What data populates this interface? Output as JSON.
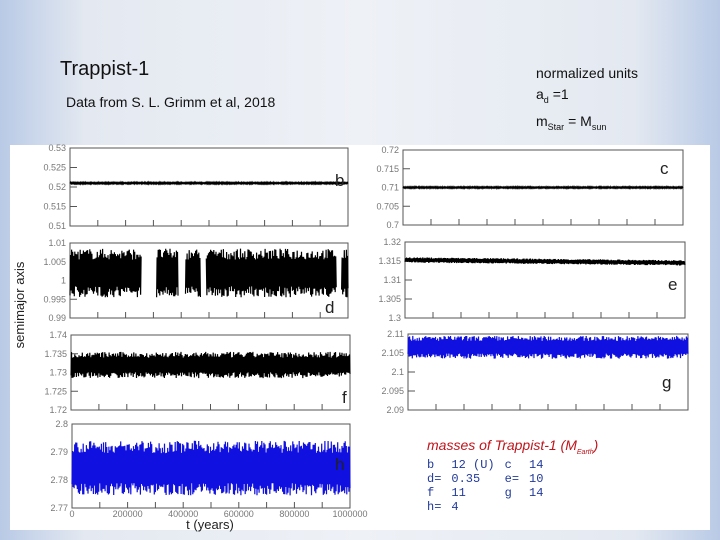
{
  "header": {
    "title": "Trappist-1",
    "source": "Data from S. L. Grimm et al, 2018",
    "units_line1": "normalized units",
    "units_a": "a",
    "units_a_sub": "d",
    "units_a_val": " =1",
    "units_m": "m",
    "units_m_sub": "Star",
    "units_m_eq": " = M",
    "units_m_sub2": "sun"
  },
  "chart_data": {
    "type": "line",
    "ylabel": "semimajor axis",
    "xlabel": "t  (years)",
    "xlim": [
      0,
      1000000
    ],
    "xticks": [
      "0",
      "200000",
      "400000",
      "600000",
      "800000",
      "1000000"
    ],
    "grid": false,
    "panels": [
      {
        "label": "b",
        "ylim": [
          0.51,
          0.53
        ],
        "yticks": [
          "0.53",
          "0.525",
          "0.52",
          "0.515",
          "0.51"
        ],
        "band": [
          0.5208,
          0.5212
        ],
        "color": "#000000"
      },
      {
        "label": "c",
        "ylim": [
          0.7,
          0.72
        ],
        "yticks": [
          "0.72",
          "0.715",
          "0.71",
          "0.705",
          "0.7"
        ],
        "band": [
          0.7098,
          0.7102
        ],
        "color": "#000000"
      },
      {
        "label": "d",
        "ylim": [
          0.99,
          1.01
        ],
        "yticks": [
          "1.01",
          "1.005",
          "1",
          "0.995",
          "0.99"
        ],
        "band": [
          0.9955,
          1.0085
        ],
        "gaps": [
          [
            256000,
            310000
          ],
          [
            390000,
            415000
          ],
          [
            470000,
            490000
          ],
          [
            958000,
            976000
          ]
        ],
        "color": "#000000"
      },
      {
        "label": "e",
        "ylim": [
          1.3,
          1.32
        ],
        "yticks": [
          "1.32",
          "1.315",
          "1.31",
          "1.305",
          "1.3"
        ],
        "band": [
          1.3146,
          1.316
        ],
        "trend_end": [
          1.3138,
          1.3152
        ],
        "color": "#000000"
      },
      {
        "label": "f",
        "ylim": [
          1.72,
          1.74
        ],
        "yticks": [
          "1.74",
          "1.735",
          "1.73",
          "1.725",
          "1.72"
        ],
        "band": [
          1.7285,
          1.7355
        ],
        "color": "#000000"
      },
      {
        "label": "g",
        "ylim": [
          2.09,
          2.11
        ],
        "yticks": [
          "2.11",
          "2.105",
          "2.1",
          "2.095",
          "2.09"
        ],
        "band": [
          2.1035,
          2.1095
        ],
        "color": "#1010e0"
      },
      {
        "label": "h",
        "ylim": [
          2.77,
          2.8
        ],
        "yticks": [
          "2.8",
          "2.79",
          "2.78",
          "2.77"
        ],
        "band": [
          2.7745,
          2.794
        ],
        "color": "#1010e0"
      }
    ]
  },
  "masses": {
    "title": "masses of Trappist-1  (M",
    "title_sub": "Earth",
    "title_end": ")",
    "rows": [
      [
        {
          "k": "b",
          "v": "12 (U)"
        },
        {
          "k": "c",
          "v": "14"
        }
      ],
      [
        {
          "k": "d=",
          "v": "0.35"
        },
        {
          "k": "e=",
          "v": "10"
        }
      ],
      [
        {
          "k": "f",
          "v": "11"
        },
        {
          "k": "g",
          "v": "14"
        }
      ],
      [
        {
          "k": "h=",
          "v": "4"
        },
        {
          "k": "",
          "v": ""
        }
      ]
    ]
  }
}
